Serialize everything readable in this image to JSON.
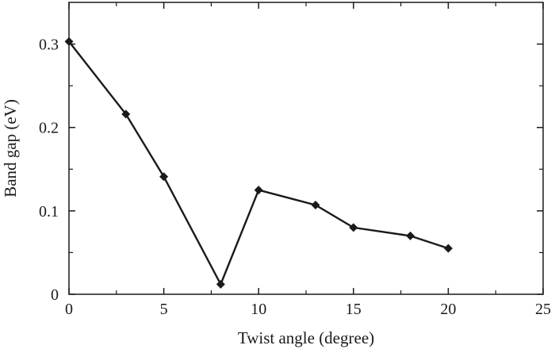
{
  "chart_data": {
    "type": "line",
    "xlabel": "Twist angle (degree)",
    "ylabel": "Band gap (eV)",
    "xlim": [
      0,
      25
    ],
    "ylim": [
      0,
      0.35
    ],
    "xticks": [
      0,
      5,
      10,
      15,
      20,
      25
    ],
    "xtick_labels": [
      "0",
      "5",
      "10",
      "15",
      "20",
      "25"
    ],
    "yticks": [
      0,
      0.1,
      0.2,
      0.3
    ],
    "ytick_labels": [
      "0",
      "0.1",
      "0.2",
      "0.3"
    ],
    "grid": false,
    "marker": "diamond",
    "series": [
      {
        "x": [
          0,
          3,
          5,
          8,
          10,
          13,
          15,
          18,
          20
        ],
        "y": [
          0.303,
          0.216,
          0.141,
          0.012,
          0.125,
          0.107,
          0.08,
          0.07,
          0.055
        ]
      }
    ]
  },
  "colors": {
    "line": "#1a1a1a",
    "marker": "#1a1a1a",
    "axis": "#1a1a1a",
    "background": "#ffffff"
  }
}
